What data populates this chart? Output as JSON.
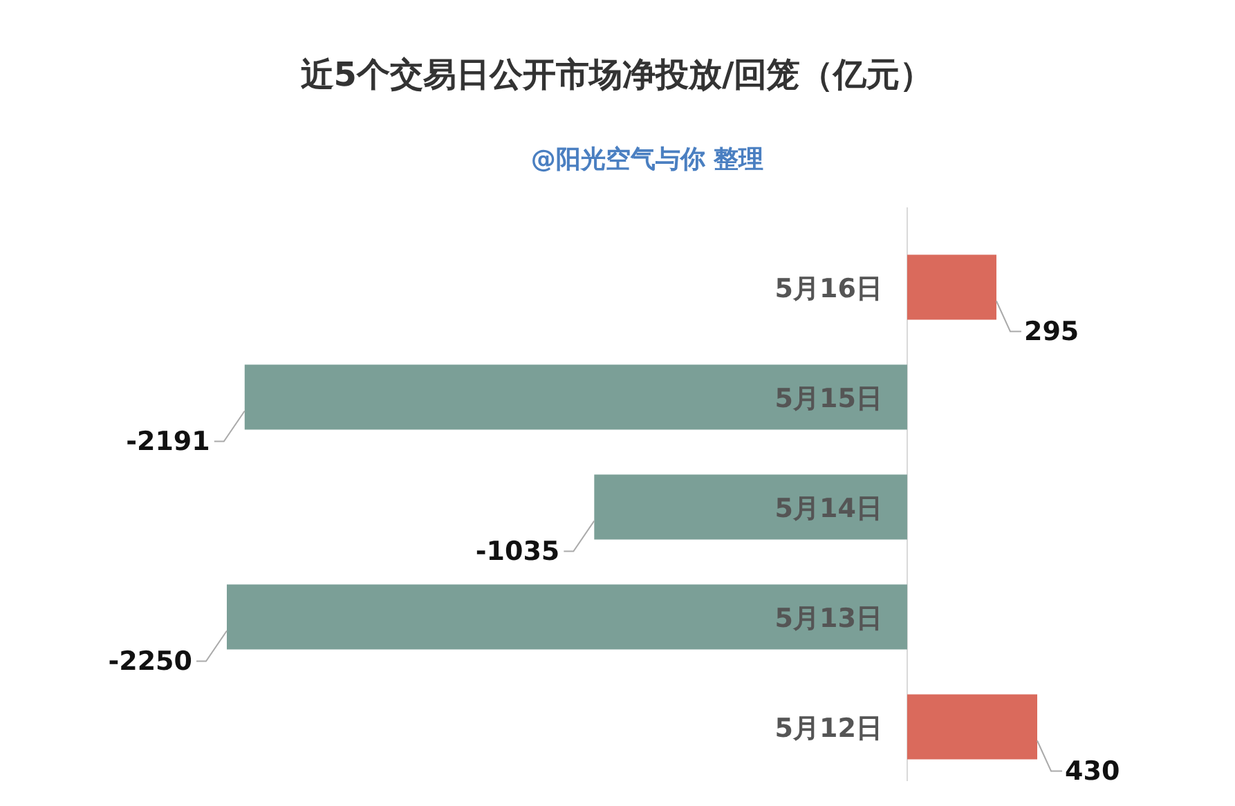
{
  "chart_data": {
    "type": "bar",
    "orientation": "horizontal",
    "title": "近5个交易日公开市场净投放/回笼（亿元）",
    "subtitle": "@阳光空气与你 整理",
    "categories": [
      "5月16日",
      "5月15日",
      "5月14日",
      "5月13日",
      "5月12日"
    ],
    "values": [
      295,
      -2191,
      -1035,
      -2250,
      430
    ],
    "colors": [
      "#da6a5c",
      "#7b9f97",
      "#7b9f97",
      "#7b9f97",
      "#da6a5c"
    ],
    "data_labels": true
  }
}
